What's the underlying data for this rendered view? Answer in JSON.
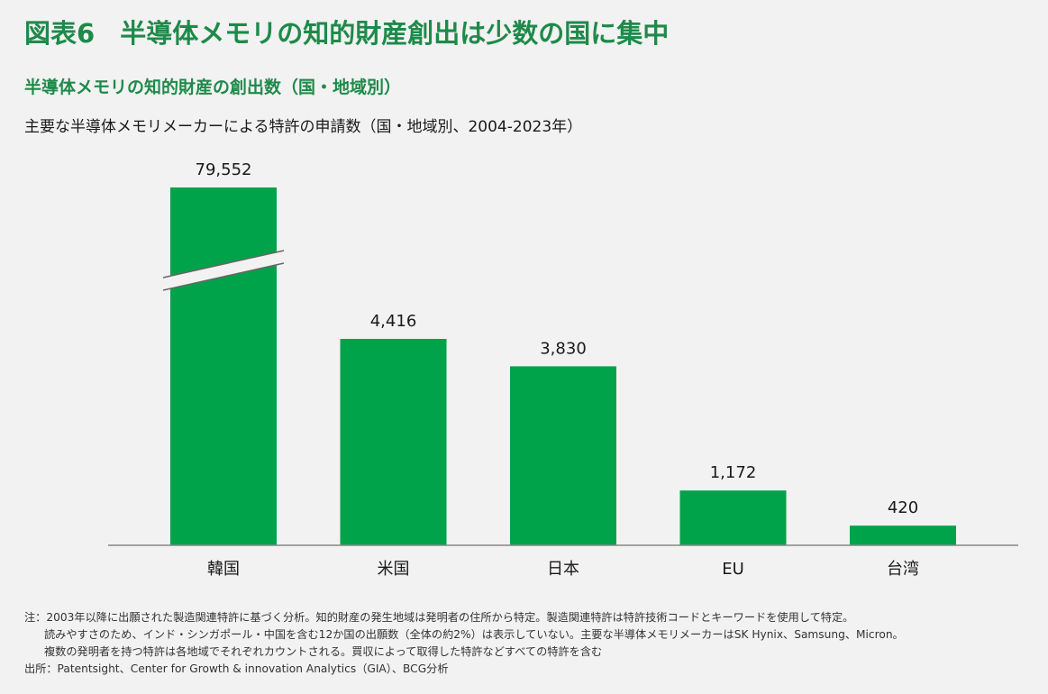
{
  "header": {
    "figure_label": "図表6",
    "title": "半導体メモリの知的財産創出は少数の国に集中",
    "subtitle": "半導体メモリの知的財産の創出数（国・地域別）",
    "caption": "主要な半導体メモリメーカーによる特許の申請数（国・地域別、2004-2023年）"
  },
  "colors": {
    "title_green": "#1e8a4a",
    "bar_green": "#00a349",
    "axis": "#888888",
    "background": "#f2f2f2"
  },
  "chart_data": {
    "type": "bar",
    "categories": [
      "韓国",
      "米国",
      "日本",
      "EU",
      "台湾"
    ],
    "values": [
      79552,
      4416,
      3830,
      1172,
      420
    ],
    "value_labels": [
      "79,552",
      "4,416",
      "3,830",
      "1,172",
      "420"
    ],
    "axis_break": {
      "category": "韓国"
    },
    "grid": false,
    "legend": "none"
  },
  "notes": {
    "line1": "注：2003年以降に出願された製造関連特許に基づく分析。知的財産の発生地域は発明者の住所から特定。製造関連特許は特許技術コードとキーワードを使用して特定。",
    "line2": "読みやすさのため、インド・シンガポール・中国を含む12か国の出願数（全体の約2%）は表示していない。主要な半導体メモリメーカーはSK Hynix、Samsung、Micron。",
    "line3": "複数の発明者を持つ特許は各地域でそれぞれカウントされる。買収によって取得した特許などすべての特許を含む",
    "source": "出所：Patentsight、Center for Growth & innovation Analytics（GIA）、BCG分析"
  }
}
